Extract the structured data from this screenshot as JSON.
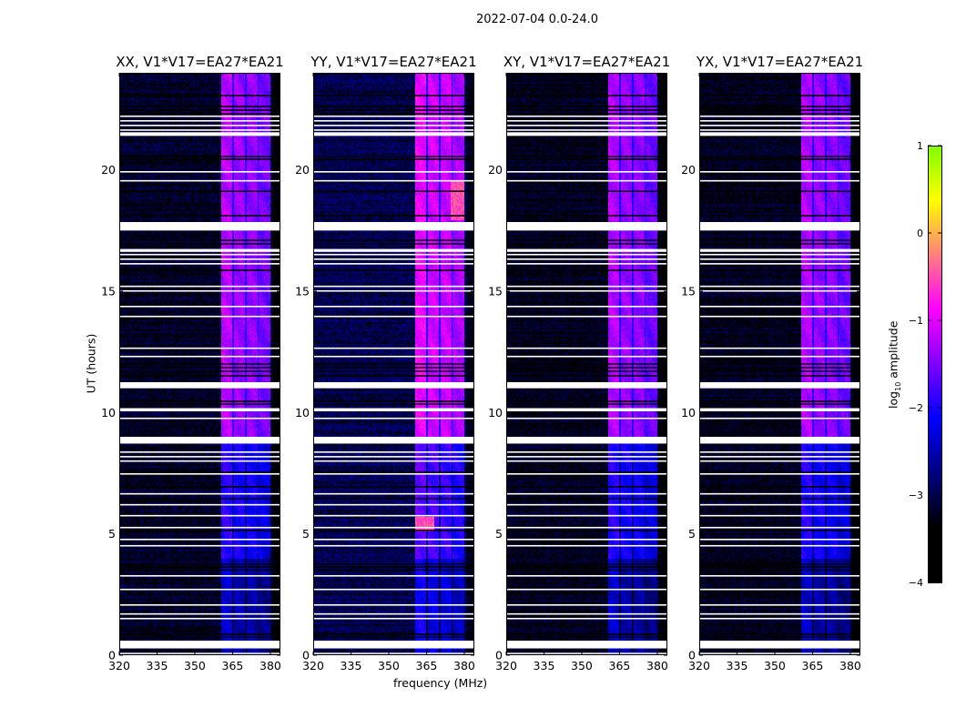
{
  "chart_data": {
    "type": "heatmap",
    "title": "2022-07-04 0.0-24.0",
    "xlabel": "frequency (MHz)",
    "ylabel": "UT (hours)",
    "xlim": [
      320,
      384
    ],
    "ylim": [
      0,
      24
    ],
    "xticks": [
      "320",
      "335",
      "350",
      "365",
      "380"
    ],
    "xtick_values": [
      320,
      335,
      350,
      365,
      380
    ],
    "yticks": [
      "0",
      "5",
      "10",
      "15",
      "20"
    ],
    "ytick_values": [
      0,
      5,
      10,
      15,
      20
    ],
    "colorbar": {
      "label_main": "log",
      "label_sub": "10",
      "label_rest": " amplitude",
      "range": [
        -4,
        1
      ],
      "colormap": "jet",
      "ticks": [
        "1",
        "0",
        "−1",
        "−2",
        "−3",
        "−4"
      ],
      "tick_values": [
        1,
        0,
        -1,
        -2,
        -3,
        -4
      ]
    },
    "panels": [
      {
        "title": "XX, V1*V17=EA27*EA21",
        "background_level": -3.2,
        "band_gain": 0.0,
        "hotspots": []
      },
      {
        "title": "YY, V1*V17=EA27*EA21",
        "background_level": -3.0,
        "band_gain": 0.25,
        "hotspots": [
          {
            "f": [
              374.5,
              380
            ],
            "t": [
              17.9,
              19.6
            ],
            "level": -0.5
          },
          {
            "f": [
              360.4,
              368
            ],
            "t": [
              5.1,
              5.7
            ],
            "level": -0.5
          }
        ]
      },
      {
        "title": "XY, V1*V17=EA27*EA21",
        "background_level": -3.25,
        "band_gain": -0.05,
        "hotspots": []
      },
      {
        "title": "YX, V1*V17=EA27*EA21",
        "background_level": -3.25,
        "band_gain": -0.05,
        "hotspots": []
      }
    ],
    "band_segments_mhz": [
      [
        360.4,
        364.8,
        0.15
      ],
      [
        365.4,
        370.0,
        0.0
      ],
      [
        370.5,
        374.8,
        -0.05
      ],
      [
        375.3,
        380.0,
        -0.2
      ]
    ],
    "band_time_profile": [
      {
        "t": [
          0,
          4
        ],
        "level": -2.5
      },
      {
        "t": [
          4,
          9
        ],
        "level": -2.05
      },
      {
        "t": [
          9,
          24
        ],
        "level": -1.35
      }
    ],
    "flagged_white_hours": [
      [
        17.5,
        17.85
      ],
      [
        11.0,
        11.25
      ],
      [
        10.05,
        10.18
      ],
      [
        8.72,
        9.0
      ],
      [
        0.28,
        0.6
      ],
      [
        21.4,
        21.55
      ],
      [
        16.62,
        16.74
      ],
      [
        22.18,
        22.24
      ],
      [
        21.99,
        22.05
      ],
      [
        21.8,
        21.86
      ],
      [
        21.61,
        21.67
      ],
      [
        19.89,
        19.95
      ],
      [
        19.52,
        19.58
      ],
      [
        16.48,
        16.54
      ],
      [
        16.29,
        16.35
      ],
      [
        16.1,
        16.16
      ],
      [
        15.17,
        15.23
      ],
      [
        14.98,
        15.04
      ],
      [
        14.34,
        14.4
      ],
      [
        13.93,
        13.99
      ],
      [
        12.62,
        12.68
      ],
      [
        12.28,
        12.34
      ],
      [
        9.73,
        9.79
      ],
      [
        8.34,
        8.4
      ],
      [
        8.15,
        8.21
      ],
      [
        7.97,
        8.03
      ],
      [
        7.44,
        7.5
      ],
      [
        6.62,
        6.68
      ],
      [
        6.17,
        6.23
      ],
      [
        5.72,
        5.78
      ],
      [
        5.23,
        5.29
      ],
      [
        4.74,
        4.8
      ],
      [
        4.48,
        4.54
      ],
      [
        3.24,
        3.3
      ],
      [
        2.68,
        2.74
      ],
      [
        2.04,
        2.1
      ],
      [
        1.67,
        1.73
      ],
      [
        1.48,
        1.54
      ],
      [
        0.05,
        0.1
      ]
    ],
    "flagged_black_hours": [
      23.06,
      22.61,
      22.46,
      22.31,
      20.55,
      20.44,
      19.12,
      18.11,
      17.1,
      16.95,
      15.86,
      12.0,
      11.85,
      11.7,
      11.51,
      10.46,
      10.35,
      7.54,
      6.94,
      6.45,
      5.14,
      3.75,
      3.64,
      3.52,
      0.86,
      0.75
    ]
  }
}
